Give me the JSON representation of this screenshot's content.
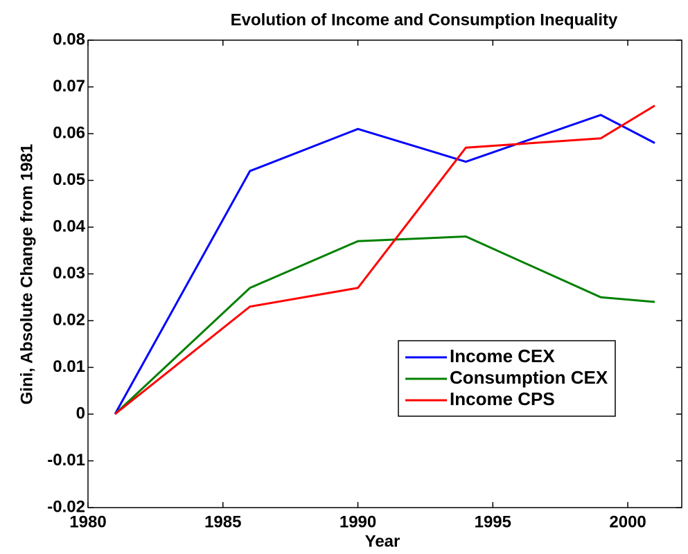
{
  "chart_data": {
    "type": "line",
    "title": "Evolution of Income and Consumption Inequality",
    "x_label": "Year",
    "y_label": "Gini, Absolute Change from 1981",
    "x": [
      1981,
      1986,
      1990,
      1994,
      1999,
      2001
    ],
    "series": [
      {
        "name": "Income CEX",
        "color": "#0000ff",
        "values": [
          0,
          0.052,
          0.061,
          0.054,
          0.064,
          0.058
        ]
      },
      {
        "name": "Consumption CEX",
        "color": "#008000",
        "values": [
          0,
          0.027,
          0.037,
          0.038,
          0.025,
          0.024
        ]
      },
      {
        "name": "Income CPS",
        "color": "#ff0000",
        "values": [
          0,
          0.023,
          0.027,
          0.057,
          0.059,
          0.066
        ]
      }
    ],
    "xlim": [
      1980,
      2002
    ],
    "xticks": [
      1980,
      1985,
      1990,
      1995,
      2000
    ],
    "ylim": [
      -0.02,
      0.08
    ],
    "yticks": [
      -0.02,
      -0.01,
      0,
      0.01,
      0.02,
      0.03,
      0.04,
      0.05,
      0.06,
      0.07,
      0.08
    ],
    "legend": "lower-right"
  }
}
